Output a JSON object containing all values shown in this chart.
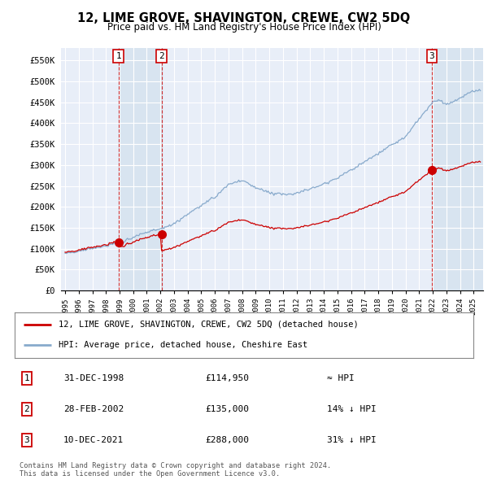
{
  "title": "12, LIME GROVE, SHAVINGTON, CREWE, CW2 5DQ",
  "subtitle": "Price paid vs. HM Land Registry's House Price Index (HPI)",
  "ylabel_ticks": [
    "£0",
    "£50K",
    "£100K",
    "£150K",
    "£200K",
    "£250K",
    "£300K",
    "£350K",
    "£400K",
    "£450K",
    "£500K",
    "£550K"
  ],
  "ytick_values": [
    0,
    50000,
    100000,
    150000,
    200000,
    250000,
    300000,
    350000,
    400000,
    450000,
    500000,
    550000
  ],
  "ylim": [
    0,
    580000
  ],
  "background_color": "#e8eef8",
  "plot_bg": "#e8eef8",
  "grid_color": "#ffffff",
  "sale_t": [
    1998.9167,
    2002.0833,
    2021.9417
  ],
  "sale_prices": [
    114950,
    135000,
    288000
  ],
  "sale_labels": [
    "1",
    "2",
    "3"
  ],
  "legend_label_red": "12, LIME GROVE, SHAVINGTON, CREWE, CW2 5DQ (detached house)",
  "legend_label_blue": "HPI: Average price, detached house, Cheshire East",
  "table_data": [
    [
      "1",
      "31-DEC-1998",
      "£114,950",
      "≈ HPI"
    ],
    [
      "2",
      "28-FEB-2002",
      "£135,000",
      "14% ↓ HPI"
    ],
    [
      "3",
      "10-DEC-2021",
      "£288,000",
      "31% ↓ HPI"
    ]
  ],
  "footnote": "Contains HM Land Registry data © Crown copyright and database right 2024.\nThis data is licensed under the Open Government Licence v3.0.",
  "red_color": "#cc0000",
  "blue_color": "#88aacc",
  "shade_color": "#d8e4f0",
  "hpi_key_t": [
    1995,
    1996,
    1997,
    1998,
    1999,
    2000,
    2001,
    2002,
    2003,
    2004,
    2005,
    2006,
    2007,
    2008,
    2009,
    2010,
    2011,
    2012,
    2013,
    2014,
    2015,
    2016,
    2017,
    2018,
    2019,
    2020,
    2021,
    2021.5,
    2022,
    2022.5,
    2023,
    2024,
    2025
  ],
  "hpi_key_v": [
    90000,
    94000,
    100000,
    108000,
    116000,
    128000,
    140000,
    148000,
    162000,
    185000,
    205000,
    225000,
    255000,
    265000,
    248000,
    238000,
    235000,
    238000,
    248000,
    262000,
    275000,
    295000,
    315000,
    335000,
    355000,
    375000,
    415000,
    435000,
    455000,
    460000,
    448000,
    460000,
    478000
  ],
  "xlim": [
    1994.7,
    2025.7
  ]
}
